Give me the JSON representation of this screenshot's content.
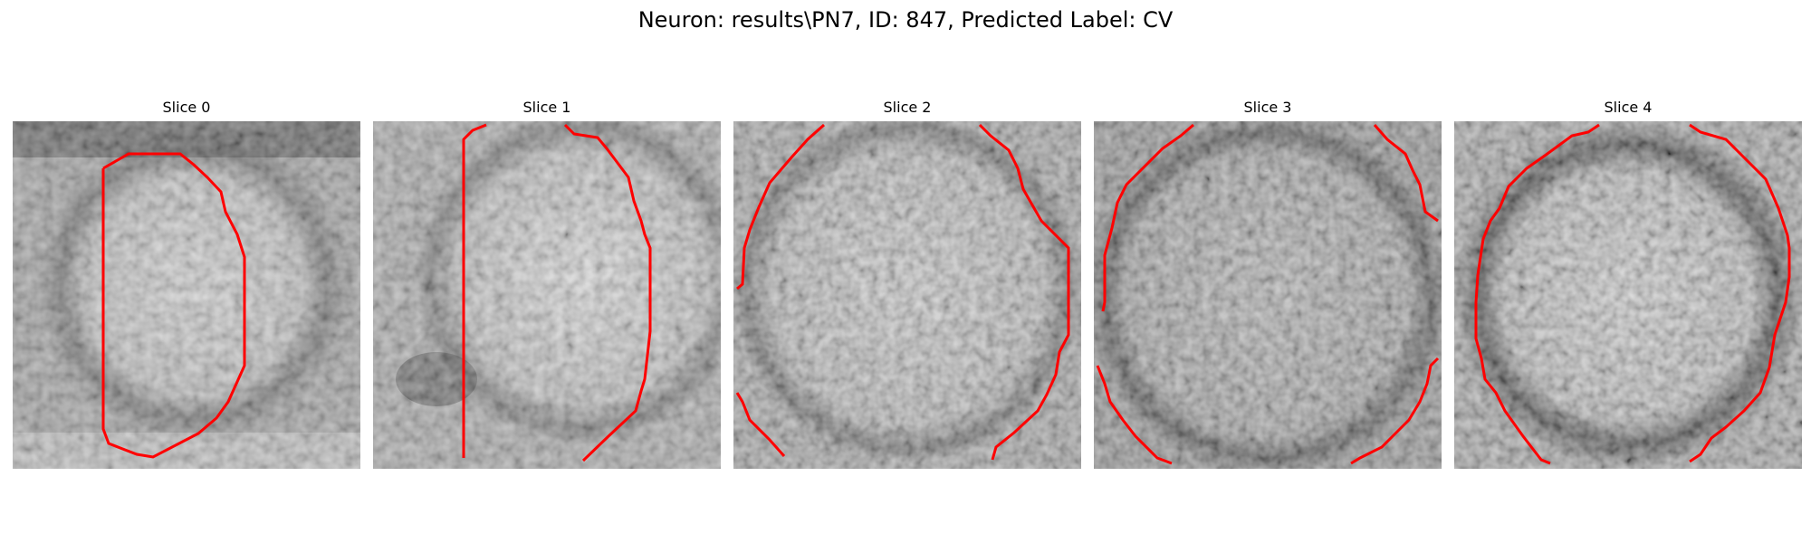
{
  "figure": {
    "title": "Neuron: results\\PN7, ID: 847, Predicted Label: CV"
  },
  "contour_color": "#ff0000",
  "slices": [
    {
      "title": "Slice 0"
    },
    {
      "title": "Slice 1"
    },
    {
      "title": "Slice 2"
    },
    {
      "title": "Slice 3"
    },
    {
      "title": "Slice 4"
    }
  ]
}
